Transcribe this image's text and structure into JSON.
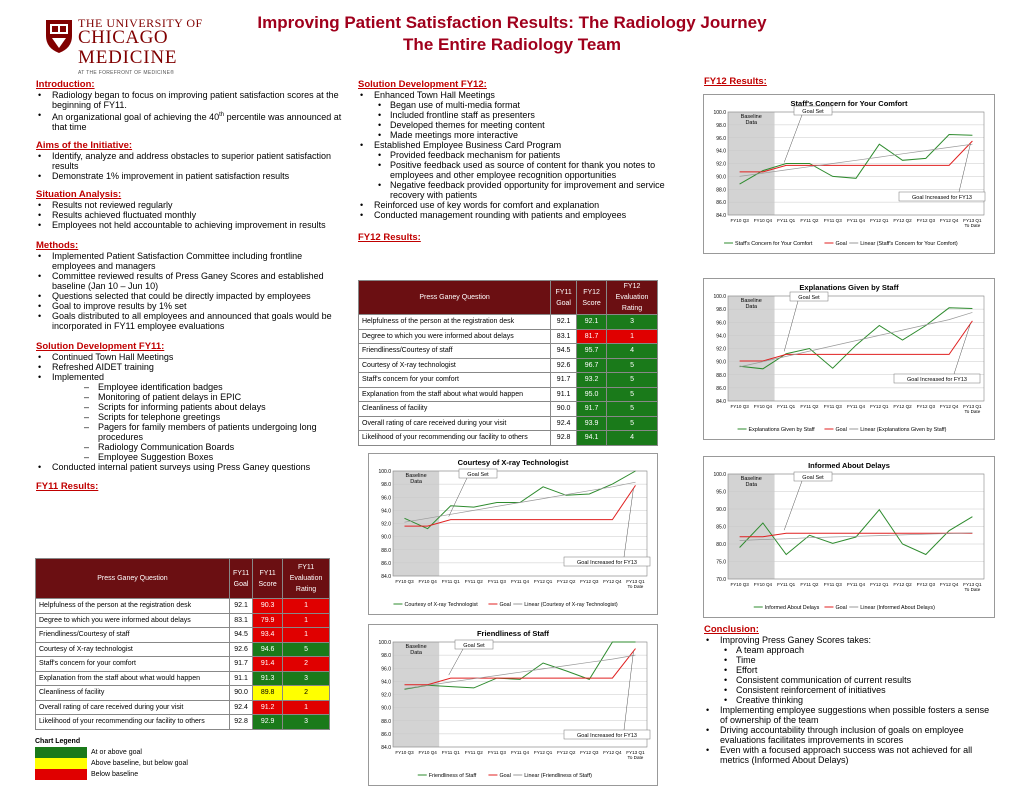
{
  "logo": {
    "line1": "THE UNIVERSITY OF",
    "line2": "CHICAGO",
    "line3": "MEDICINE",
    "line4": "AT THE FOREFRONT OF MEDICINE®",
    "color": "#800000"
  },
  "title": {
    "line1": "Improving Patient Satisfaction Results: The Radiology Journey",
    "line2": "The Entire Radiology Team",
    "color": "#a0001c"
  },
  "left": {
    "intro_h": "Introduction:",
    "intro": [
      "Radiology began to focus on improving patient satisfaction scores at the beginning of FY11.",
      "An organizational goal of achieving the 40th percentile was announced at that time"
    ],
    "aims_h": "Aims of the Initiative:",
    "aims": [
      "Identify, analyze and address obstacles to superior patient satisfaction results",
      "Demonstrate 1% improvement in patient satisfaction results"
    ],
    "sit_h": "Situation Analysis:",
    "sit": [
      "Results not reviewed regularly",
      "Results achieved fluctuated monthly",
      "Employees not held accountable to achieving improvement in results"
    ],
    "methods_h": "Methods:",
    "methods": [
      "Implemented Patient Satisfaction Committee including frontline employees and managers",
      "Committee reviewed results of Press Ganey Scores and established baseline (Jan 10 – Jun 10)",
      "Questions selected that could be directly impacted by employees",
      "Goal to improve results by 1% set",
      "Goals distributed to all employees and announced that goals would be incorporated in FY11 employee evaluations"
    ],
    "sd11_h": "Solution Development FY11:",
    "sd11_a": [
      "Continued Town Hall Meetings",
      "Refreshed AIDET training",
      "Implemented"
    ],
    "sd11_sub": [
      "Employee identification badges",
      "Monitoring of patient delays in EPIC",
      "Scripts for informing patients about delays",
      "Scripts for telephone greetings",
      "Pagers for family members of patients undergoing long procedures",
      "Radiology Communication Boards",
      "Employee Suggestion Boxes"
    ],
    "sd11_b": [
      "Conducted internal patient surveys using Press Ganey questions"
    ],
    "fy11_h": "FY11 Results:"
  },
  "middle": {
    "sd12_h": "Solution Development FY12:",
    "sd12_1": "Enhanced Town Hall Meetings",
    "sd12_1_sub": [
      "Began use of multi-media format",
      "Included frontline staff as presenters",
      "Developed themes for meeting content",
      "Made meetings more interactive"
    ],
    "sd12_2": "Established Employee Business Card Program",
    "sd12_2_sub": [
      "Provided feedback mechanism for patients",
      "Positive feedback used as source of content for thank you notes to employees and other employee recognition opportunities",
      "Negative feedback provided opportunity for improvement and service recovery with patients"
    ],
    "sd12_rest": [
      "Reinforced use of key words for comfort and explanation",
      "Conducted management rounding with patients and employees"
    ],
    "fy12_h": "FY12 Results:"
  },
  "right": {
    "fy12_h": "FY12 Results:",
    "conc_h": "Conclusion:",
    "conc_1": "Improving Press Ganey Scores takes:",
    "conc_1_sub": [
      "A team approach",
      "Time",
      "Effort",
      "Consistent communication of current results",
      "Consistent reinforcement of initiatives",
      "Creative thinking"
    ],
    "conc_rest": [
      "Implementing employee suggestions when possible fosters a sense of ownership of the team",
      "Driving accountability through inclusion of goals on employee evaluations facilitates improvements in scores",
      "Even with a focused approach success was not achieved for all metrics (Informed About Delays)"
    ]
  },
  "tables": {
    "headers": [
      "Press Ganey Question",
      "FY11 Goal",
      "FY12 Score",
      "FY12 Evaluation Rating"
    ],
    "headers_fy11": [
      "Press Ganey Question",
      "FY11 Goal",
      "FY11 Score",
      "FY11 Evaluation Rating"
    ],
    "questions": [
      "Helpfulness of the person at the registration desk",
      "Degree to which you were informed about delays",
      "Friendliness/Courtesy of staff",
      "Courtesy of X-ray technologist",
      "Staff's concern for your comfort",
      "Explanation from the staff about what would happen",
      "Cleanliness of facility",
      "Overall rating of care received during your visit",
      "Likelihood of your recommending our facility to others"
    ],
    "goals": [
      "92.1",
      "83.1",
      "94.5",
      "92.6",
      "91.7",
      "91.1",
      "90.0",
      "92.4",
      "92.8"
    ],
    "fy12_scores": [
      "92.1",
      "81.7",
      "95.7",
      "96.7",
      "93.2",
      "95.0",
      "91.7",
      "93.9",
      "94.1"
    ],
    "fy12_ratings": [
      "3",
      "1",
      "4",
      "5",
      "5",
      "5",
      "5",
      "5",
      "4"
    ],
    "fy12_colors": [
      "g",
      "r",
      "g",
      "g",
      "g",
      "g",
      "g",
      "g",
      "g"
    ],
    "fy11_scores": [
      "90.3",
      "79.9",
      "93.4",
      "94.6",
      "91.4",
      "91.3",
      "89.8",
      "91.2",
      "92.9"
    ],
    "fy11_ratings": [
      "1",
      "1",
      "1",
      "5",
      "2",
      "3",
      "2",
      "1",
      "3"
    ],
    "fy11_colors": [
      "r",
      "r",
      "r",
      "g",
      "r",
      "g",
      "y",
      "r",
      "g"
    ]
  },
  "legend": {
    "title": "Chart Legend",
    "items": [
      "At or above goal",
      "Above baseline, but below goal",
      "Below baseline"
    ],
    "colors": [
      "#1a7a1a",
      "#ffff00",
      "#e00000"
    ]
  },
  "chart_data": [
    {
      "id": "comfort",
      "type": "line",
      "title": "Staff's Concern for Your Comfort",
      "categories": [
        "FY10 Q3",
        "FY10 Q4",
        "FY11 Q1",
        "FY11 Q2",
        "FY11 Q3",
        "FY11 Q4",
        "FY12 Q1",
        "FY12 Q2",
        "FY12 Q3",
        "FY12 Q4",
        "FY13 Q1 To Date"
      ],
      "ylim": [
        84,
        100
      ],
      "yticks": [
        "84.0",
        "86.0",
        "88.0",
        "90.0",
        "92.0",
        "94.0",
        "96.0",
        "98.0",
        "100.0"
      ],
      "series": [
        {
          "name": "Staff's Concern for Your Comfort",
          "values": [
            88.8,
            90.9,
            92.0,
            92.0,
            90.0,
            89.7,
            95.0,
            92.5,
            92.8,
            96.5,
            96.4
          ]
        },
        {
          "name": "Goal",
          "values": [
            90.7,
            90.7,
            91.7,
            91.7,
            91.7,
            91.7,
            91.7,
            91.7,
            91.7,
            91.7,
            95.5
          ]
        },
        {
          "name": "Linear (Staff's Concern for Your Comfort)",
          "values": [
            90.0,
            90.5,
            91.0,
            91.5,
            92.0,
            92.5,
            93.0,
            93.5,
            94.0,
            94.5,
            95.0
          ]
        }
      ],
      "annotations": [
        "Baseline Data",
        "Goal Set",
        "Goal Increased for FY13"
      ]
    },
    {
      "id": "explanations",
      "type": "line",
      "title": "Explanations Given by Staff",
      "categories": [
        "FY10 Q3",
        "FY10 Q4",
        "FY11 Q1",
        "FY11 Q2",
        "FY11 Q3",
        "FY11 Q4",
        "FY12 Q1",
        "FY12 Q2",
        "FY12 Q3",
        "FY12 Q4",
        "FY13 Q1 To Date"
      ],
      "ylim": [
        84,
        100
      ],
      "yticks": [
        "84.0",
        "86.0",
        "88.0",
        "90.0",
        "92.0",
        "94.0",
        "96.0",
        "98.0",
        "100.0"
      ],
      "series": [
        {
          "name": "Explanations Given by Staff",
          "values": [
            89.3,
            88.9,
            91.2,
            92.0,
            89.0,
            92.5,
            95.5,
            93.3,
            95.5,
            98.2,
            98.1
          ]
        },
        {
          "name": "Goal",
          "values": [
            90.1,
            90.1,
            91.1,
            91.1,
            91.1,
            91.1,
            91.1,
            91.1,
            91.1,
            91.1,
            96.2
          ]
        },
        {
          "name": "Linear (Explanations Given by Staff)",
          "values": [
            89.2,
            90.0,
            90.8,
            91.6,
            92.4,
            93.2,
            94.0,
            94.8,
            95.6,
            96.4,
            97.5
          ]
        }
      ],
      "annotations": [
        "Baseline Data",
        "Goal Set",
        "Goal Increased for FY13"
      ]
    },
    {
      "id": "xray",
      "type": "line",
      "title": "Courtesy of X-ray Technologist",
      "categories": [
        "FY10 Q3",
        "FY10 Q4",
        "FY11 Q1",
        "FY11 Q2",
        "FY11 Q3",
        "FY11 Q4",
        "FY12 Q1",
        "FY12 Q2",
        "FY12 Q3",
        "FY12 Q4",
        "FY13 Q1 To Date"
      ],
      "ylim": [
        84,
        100
      ],
      "yticks": [
        "84.0",
        "86.0",
        "88.0",
        "90.0",
        "92.0",
        "94.0",
        "96.0",
        "98.0",
        "100.0"
      ],
      "series": [
        {
          "name": "Courtesy of X-ray Technologist",
          "values": [
            92.8,
            91.2,
            94.7,
            94.5,
            95.2,
            95.2,
            97.6,
            96.3,
            96.5,
            98.0,
            100.0
          ]
        },
        {
          "name": "Goal",
          "values": [
            91.6,
            91.6,
            92.6,
            92.6,
            92.6,
            92.6,
            92.6,
            92.6,
            92.6,
            92.6,
            97.8
          ]
        },
        {
          "name": "Linear (Courtesy of X-ray Technologist)",
          "values": [
            92.2,
            92.8,
            93.4,
            94.0,
            94.6,
            95.2,
            95.8,
            96.4,
            97.0,
            97.6,
            98.3
          ]
        }
      ],
      "annotations": [
        "Baseline Data",
        "Goal Set",
        "Goal Increased for FY13"
      ]
    },
    {
      "id": "delays",
      "type": "line",
      "title": "Informed About Delays",
      "categories": [
        "FY10 Q3",
        "FY10 Q4",
        "FY11 Q1",
        "FY11 Q2",
        "FY11 Q3",
        "FY11 Q4",
        "FY12 Q1",
        "FY12 Q2",
        "FY12 Q3",
        "FY12 Q4",
        "FY13 Q1 To Date"
      ],
      "ylim": [
        70,
        100
      ],
      "yticks": [
        "70.0",
        "75.0",
        "80.0",
        "85.0",
        "90.0",
        "95.0",
        "100.0"
      ],
      "series": [
        {
          "name": "Informed About Delays",
          "values": [
            79.0,
            86.0,
            77.0,
            82.5,
            80.2,
            82.0,
            89.8,
            80.0,
            77.0,
            83.8,
            87.8
          ]
        },
        {
          "name": "Goal",
          "values": [
            82.1,
            82.1,
            83.1,
            83.1,
            83.1,
            83.1,
            83.1,
            83.1,
            83.1,
            83.1,
            83.1
          ]
        },
        {
          "name": "Linear (Informed About Delays)",
          "values": [
            81.0,
            81.3,
            81.5,
            81.8,
            82.0,
            82.2,
            82.4,
            82.6,
            82.8,
            83.0,
            83.2
          ]
        }
      ],
      "annotations": [
        "Baseline Data",
        "Goal Set"
      ]
    },
    {
      "id": "friendliness",
      "type": "line",
      "title": "Friendliness of Staff",
      "categories": [
        "FY10 Q3",
        "FY10 Q4",
        "FY11 Q1",
        "FY11 Q2",
        "FY11 Q3",
        "FY11 Q4",
        "FY12 Q1",
        "FY12 Q2",
        "FY12 Q3",
        "FY12 Q4",
        "FY13 Q1 To Date"
      ],
      "ylim": [
        84,
        100
      ],
      "yticks": [
        "84.0",
        "86.0",
        "88.0",
        "90.0",
        "92.0",
        "94.0",
        "96.0",
        "98.0",
        "100.0"
      ],
      "series": [
        {
          "name": "Friendliness of Staff",
          "values": [
            92.8,
            93.4,
            93.2,
            93.0,
            94.5,
            94.3,
            96.8,
            95.6,
            94.3,
            100.0,
            100.0
          ]
        },
        {
          "name": "Goal",
          "values": [
            93.5,
            93.5,
            94.5,
            94.5,
            94.5,
            94.5,
            94.5,
            94.5,
            94.5,
            94.5,
            99.0
          ]
        },
        {
          "name": "Linear (Friendliness of Staff)",
          "values": [
            92.9,
            93.4,
            93.9,
            94.4,
            94.9,
            95.4,
            95.9,
            96.4,
            96.9,
            97.4,
            98.0
          ]
        }
      ],
      "annotations": [
        "Baseline Data",
        "Goal Set",
        "Goal Increased for FY13"
      ]
    }
  ]
}
